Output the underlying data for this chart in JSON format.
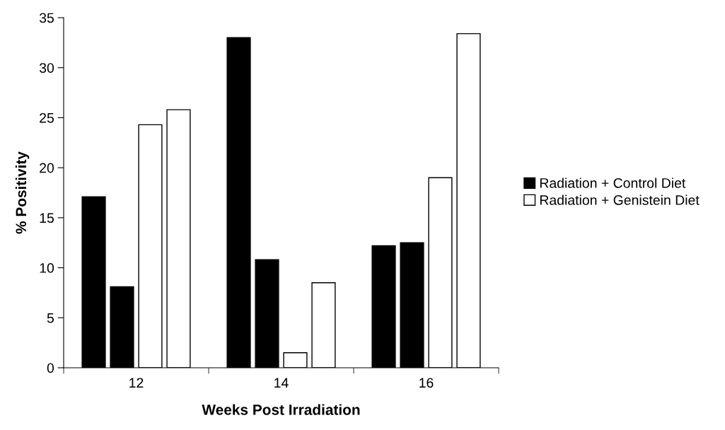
{
  "chart_data": {
    "type": "bar",
    "xlabel": "Weeks Post Irradiation",
    "ylabel": "% Positivity",
    "categories": [
      "12",
      "14",
      "16"
    ],
    "series": [
      {
        "name": "Radiation + Control Diet",
        "color": "#000000",
        "values": [
          17.1,
          33.0,
          12.2
        ]
      },
      {
        "color": "#000000",
        "values": [
          8.1,
          10.8,
          12.5
        ]
      },
      {
        "name": "Radiation + Genistein Diet",
        "color": "#ffffff",
        "values": [
          24.3,
          1.5,
          19.0
        ]
      },
      {
        "color": "#ffffff",
        "values": [
          25.8,
          8.5,
          33.4
        ]
      }
    ],
    "ylim": [
      0,
      35
    ],
    "yticks": [
      0,
      5,
      10,
      15,
      20,
      25,
      30,
      35
    ],
    "grid": false,
    "legend": "right"
  }
}
